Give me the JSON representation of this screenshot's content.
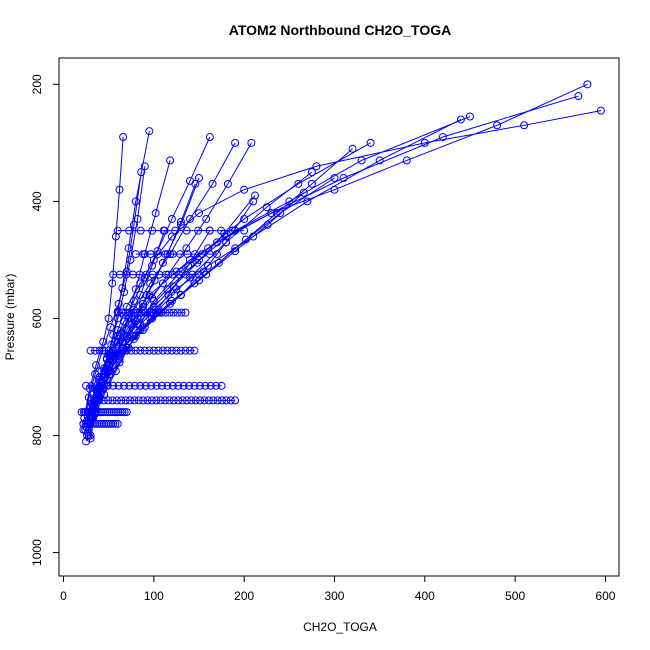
{
  "chart_data": {
    "type": "scatter",
    "title": "ATOM2 Northbound CH2O_TOGA",
    "xlabel": "CH2O_TOGA",
    "ylabel": "Pressure (mbar)",
    "xlim": [
      -5,
      615
    ],
    "ylim": [
      1040,
      155
    ],
    "y_reversed": true,
    "x_ticks": [
      0,
      100,
      200,
      300,
      400,
      500,
      600
    ],
    "y_ticks": [
      200,
      400,
      600,
      800,
      1000
    ],
    "grid": false,
    "legend": "none",
    "series_color": "#0000ff",
    "marker": "open-circle",
    "connected": true,
    "series": [
      {
        "x": [
          25,
          28,
          32,
          38,
          45,
          52,
          60,
          70,
          85,
          100,
          120,
          150,
          200,
          280,
          400,
          510,
          595
        ],
        "y": [
          810,
          790,
          770,
          740,
          700,
          660,
          620,
          580,
          540,
          500,
          460,
          420,
          380,
          340,
          300,
          270,
          245
        ]
      },
      {
        "x": [
          30,
          35,
          40,
          50,
          60,
          75,
          95,
          125,
          170,
          230,
          310,
          420,
          570
        ],
        "y": [
          800,
          760,
          720,
          680,
          640,
          600,
          560,
          520,
          470,
          420,
          360,
          290,
          220
        ]
      },
      {
        "x": [
          22,
          30,
          42,
          55,
          70,
          90,
          115,
          150,
          190,
          250,
          330,
          450
        ],
        "y": [
          780,
          750,
          710,
          670,
          630,
          590,
          550,
          500,
          450,
          400,
          330,
          255
        ]
      },
      {
        "x": [
          28,
          33,
          45,
          58,
          72,
          85,
          100,
          130,
          160,
          200,
          260,
          340
        ],
        "y": [
          800,
          770,
          730,
          690,
          650,
          610,
          570,
          520,
          480,
          430,
          370,
          300
        ]
      },
      {
        "x": [
          24,
          36,
          48,
          62,
          80,
          105,
          140,
          180,
          225,
          275
        ],
        "y": [
          790,
          755,
          715,
          675,
          630,
          585,
          530,
          470,
          410,
          350
        ]
      },
      {
        "x": [
          26,
          31,
          39,
          51,
          64,
          78,
          96,
          118,
          140,
          165,
          190
        ],
        "y": [
          775,
          745,
          705,
          665,
          625,
          585,
          540,
          490,
          430,
          370,
          300
        ]
      },
      {
        "x": [
          30,
          34,
          41,
          52,
          66,
          80,
          92,
          110,
          130,
          150
        ],
        "y": [
          805,
          765,
          725,
          690,
          650,
          605,
          560,
          505,
          440,
          360
        ]
      },
      {
        "x": [
          27,
          35,
          44,
          55,
          65,
          72,
          80,
          90,
          102,
          118
        ],
        "y": [
          795,
          760,
          720,
          680,
          640,
          595,
          550,
          490,
          420,
          330
        ]
      },
      {
        "x": [
          25,
          32,
          40,
          48,
          55,
          60,
          65,
          72,
          80,
          95
        ],
        "y": [
          785,
          748,
          708,
          668,
          628,
          588,
          548,
          480,
          400,
          280
        ]
      },
      {
        "x": [
          29,
          37,
          46,
          58,
          70,
          88,
          110,
          140,
          180,
          230,
          300,
          380,
          480,
          580
        ],
        "y": [
          780,
          740,
          700,
          660,
          620,
          580,
          540,
          500,
          460,
          420,
          380,
          330,
          270,
          200
        ]
      },
      {
        "x": [
          23,
          28,
          35,
          43,
          52,
          61,
          70,
          78,
          86
        ],
        "y": [
          770,
          735,
          695,
          655,
          615,
          575,
          520,
          440,
          350
        ]
      },
      {
        "x": [
          31,
          40,
          52,
          68,
          90,
          118,
          150,
          190,
          240,
          300
        ],
        "y": [
          770,
          735,
          695,
          655,
          615,
          575,
          535,
          480,
          420,
          360
        ]
      },
      {
        "x": [
          24,
          29,
          36,
          44,
          50,
          54,
          58,
          62,
          66
        ],
        "y": [
          760,
          720,
          680,
          640,
          600,
          540,
          460,
          380,
          290
        ]
      },
      {
        "x": [
          33,
          43,
          55,
          70,
          88,
          108,
          130,
          155,
          180,
          210
        ],
        "y": [
          740,
          710,
          680,
          650,
          620,
          590,
          560,
          520,
          470,
          400
        ]
      },
      {
        "x": [
          28,
          38,
          50,
          64,
          80,
          100,
          125,
          160,
          210,
          270,
          350,
          440
        ],
        "y": [
          760,
          725,
          690,
          655,
          620,
          585,
          550,
          510,
          460,
          400,
          330,
          260
        ]
      },
      {
        "x": [
          35,
          42,
          50,
          60,
          72,
          85,
          98,
          112
        ],
        "y": [
          720,
          690,
          660,
          630,
          600,
          560,
          510,
          450
        ]
      },
      {
        "x": [
          26,
          30,
          37,
          45,
          53,
          60,
          67,
          74,
          82,
          90
        ],
        "y": [
          800,
          765,
          725,
          685,
          645,
          600,
          555,
          500,
          430,
          340
        ]
      },
      {
        "x": [
          40,
          52,
          66,
          82,
          100,
          122,
          148,
          178,
          212
        ],
        "y": [
          700,
          670,
          640,
          610,
          580,
          545,
          505,
          455,
          390
        ]
      },
      {
        "x": [
          36,
          48,
          62,
          78,
          96,
          116,
          138,
          162
        ],
        "y": [
          740,
          705,
          670,
          635,
          600,
          560,
          510,
          450
        ]
      },
      {
        "x": [
          45,
          60,
          78,
          98,
          120,
          145,
          172,
          202,
          236,
          275,
          320
        ],
        "y": [
          690,
          660,
          630,
          600,
          570,
          540,
          505,
          465,
          420,
          370,
          310
        ]
      },
      {
        "x": [
          32,
          38,
          46,
          56,
          68,
          82,
          98,
          116,
          136,
          158,
          182,
          208
        ],
        "y": [
          760,
          728,
          696,
          664,
          632,
          600,
          565,
          525,
          480,
          430,
          370,
          300
        ]
      },
      {
        "x": [
          50,
          66,
          85,
          106,
          130,
          158,
          190,
          226,
          266
        ],
        "y": [
          680,
          650,
          620,
          590,
          560,
          525,
          485,
          440,
          385
        ]
      },
      {
        "x": [
          38,
          46,
          55,
          65,
          76,
          88,
          101,
          115,
          130,
          146
        ],
        "y": [
          730,
          700,
          670,
          640,
          610,
          575,
          535,
          490,
          435,
          370
        ]
      },
      {
        "x": [
          22,
          27,
          33,
          40,
          48,
          57,
          67,
          78,
          90,
          104,
          120,
          140,
          162
        ],
        "y": [
          790,
          760,
          730,
          700,
          670,
          640,
          605,
          570,
          530,
          485,
          430,
          365,
          290
        ]
      }
    ],
    "bands": [
      {
        "y": 760,
        "x_from": 20,
        "x_to": 70,
        "count": 22
      },
      {
        "y": 780,
        "x_from": 22,
        "x_to": 60,
        "count": 16
      },
      {
        "y": 740,
        "x_from": 30,
        "x_to": 190,
        "count": 34
      },
      {
        "y": 715,
        "x_from": 25,
        "x_to": 175,
        "count": 26
      },
      {
        "y": 655,
        "x_from": 30,
        "x_to": 145,
        "count": 24
      },
      {
        "y": 590,
        "x_from": 60,
        "x_to": 135,
        "count": 18
      },
      {
        "y": 525,
        "x_from": 55,
        "x_to": 150,
        "count": 14
      },
      {
        "y": 490,
        "x_from": 80,
        "x_to": 170,
        "count": 12
      },
      {
        "y": 450,
        "x_from": 60,
        "x_to": 200,
        "count": 12
      }
    ]
  }
}
